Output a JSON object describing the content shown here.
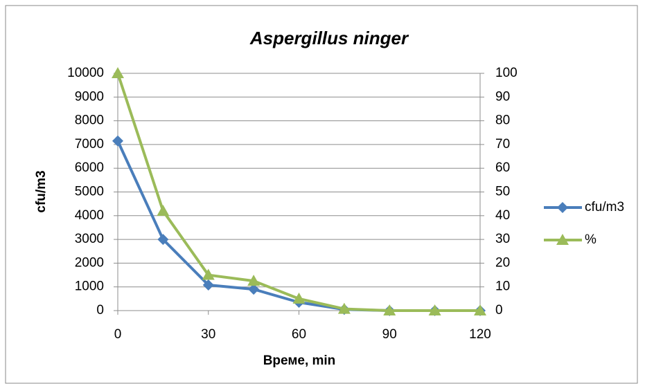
{
  "chart_data": {
    "type": "line",
    "title": "Aspergillus ninger",
    "xlabel": "Време, min",
    "ylabel": "cfu/m3",
    "x": [
      0,
      15,
      30,
      45,
      60,
      75,
      90,
      105,
      120
    ],
    "series": [
      {
        "name": "cfu/m3",
        "color": "#4a7ebb",
        "marker": "diamond",
        "values": [
          7150,
          3000,
          1080,
          900,
          350,
          50,
          0,
          0,
          0
        ]
      },
      {
        "name": "%",
        "color": "#9bbb59",
        "marker": "triangle",
        "axis": "y2",
        "values": [
          100,
          42,
          15,
          12.5,
          5,
          0.7,
          0,
          0,
          0
        ]
      }
    ],
    "xlim": [
      0,
      120
    ],
    "xticks": [
      0,
      30,
      60,
      90,
      120
    ],
    "ylim": [
      0,
      10000
    ],
    "yticks": [
      0,
      1000,
      2000,
      3000,
      4000,
      5000,
      6000,
      7000,
      8000,
      9000,
      10000
    ],
    "y2lim": [
      0,
      100
    ],
    "y2ticks": [
      0,
      10,
      20,
      30,
      40,
      50,
      60,
      70,
      80,
      90,
      100
    ],
    "grid": true,
    "legend": "right"
  }
}
